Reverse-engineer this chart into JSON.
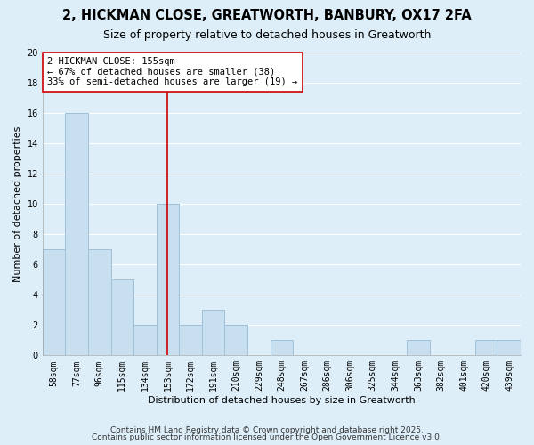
{
  "title": "2, HICKMAN CLOSE, GREATWORTH, BANBURY, OX17 2FA",
  "subtitle": "Size of property relative to detached houses in Greatworth",
  "xlabel": "Distribution of detached houses by size in Greatworth",
  "ylabel": "Number of detached properties",
  "bin_labels": [
    "58sqm",
    "77sqm",
    "96sqm",
    "115sqm",
    "134sqm",
    "153sqm",
    "172sqm",
    "191sqm",
    "210sqm",
    "229sqm",
    "248sqm",
    "267sqm",
    "286sqm",
    "306sqm",
    "325sqm",
    "344sqm",
    "363sqm",
    "382sqm",
    "401sqm",
    "420sqm",
    "439sqm"
  ],
  "bar_heights": [
    7,
    16,
    7,
    5,
    2,
    10,
    2,
    3,
    2,
    0,
    1,
    0,
    0,
    0,
    0,
    0,
    1,
    0,
    0,
    1,
    1
  ],
  "bar_color": "#c8dff0",
  "bar_edge_color": "#a0c0d8",
  "background_color": "#ddeef8",
  "grid_color": "#ffffff",
  "vline_x_idx": 5,
  "vline_color": "#cc0000",
  "ylim": [
    0,
    20
  ],
  "yticks": [
    0,
    2,
    4,
    6,
    8,
    10,
    12,
    14,
    16,
    18,
    20
  ],
  "annotation_title": "2 HICKMAN CLOSE: 155sqm",
  "annotation_line1": "← 67% of detached houses are smaller (38)",
  "annotation_line2": "33% of semi-detached houses are larger (19) →",
  "footer_line1": "Contains HM Land Registry data © Crown copyright and database right 2025.",
  "footer_line2": "Contains public sector information licensed under the Open Government Licence v3.0.",
  "title_fontsize": 10.5,
  "subtitle_fontsize": 9,
  "axis_label_fontsize": 8,
  "tick_fontsize": 7,
  "annotation_fontsize": 7.5,
  "footer_fontsize": 6.5
}
